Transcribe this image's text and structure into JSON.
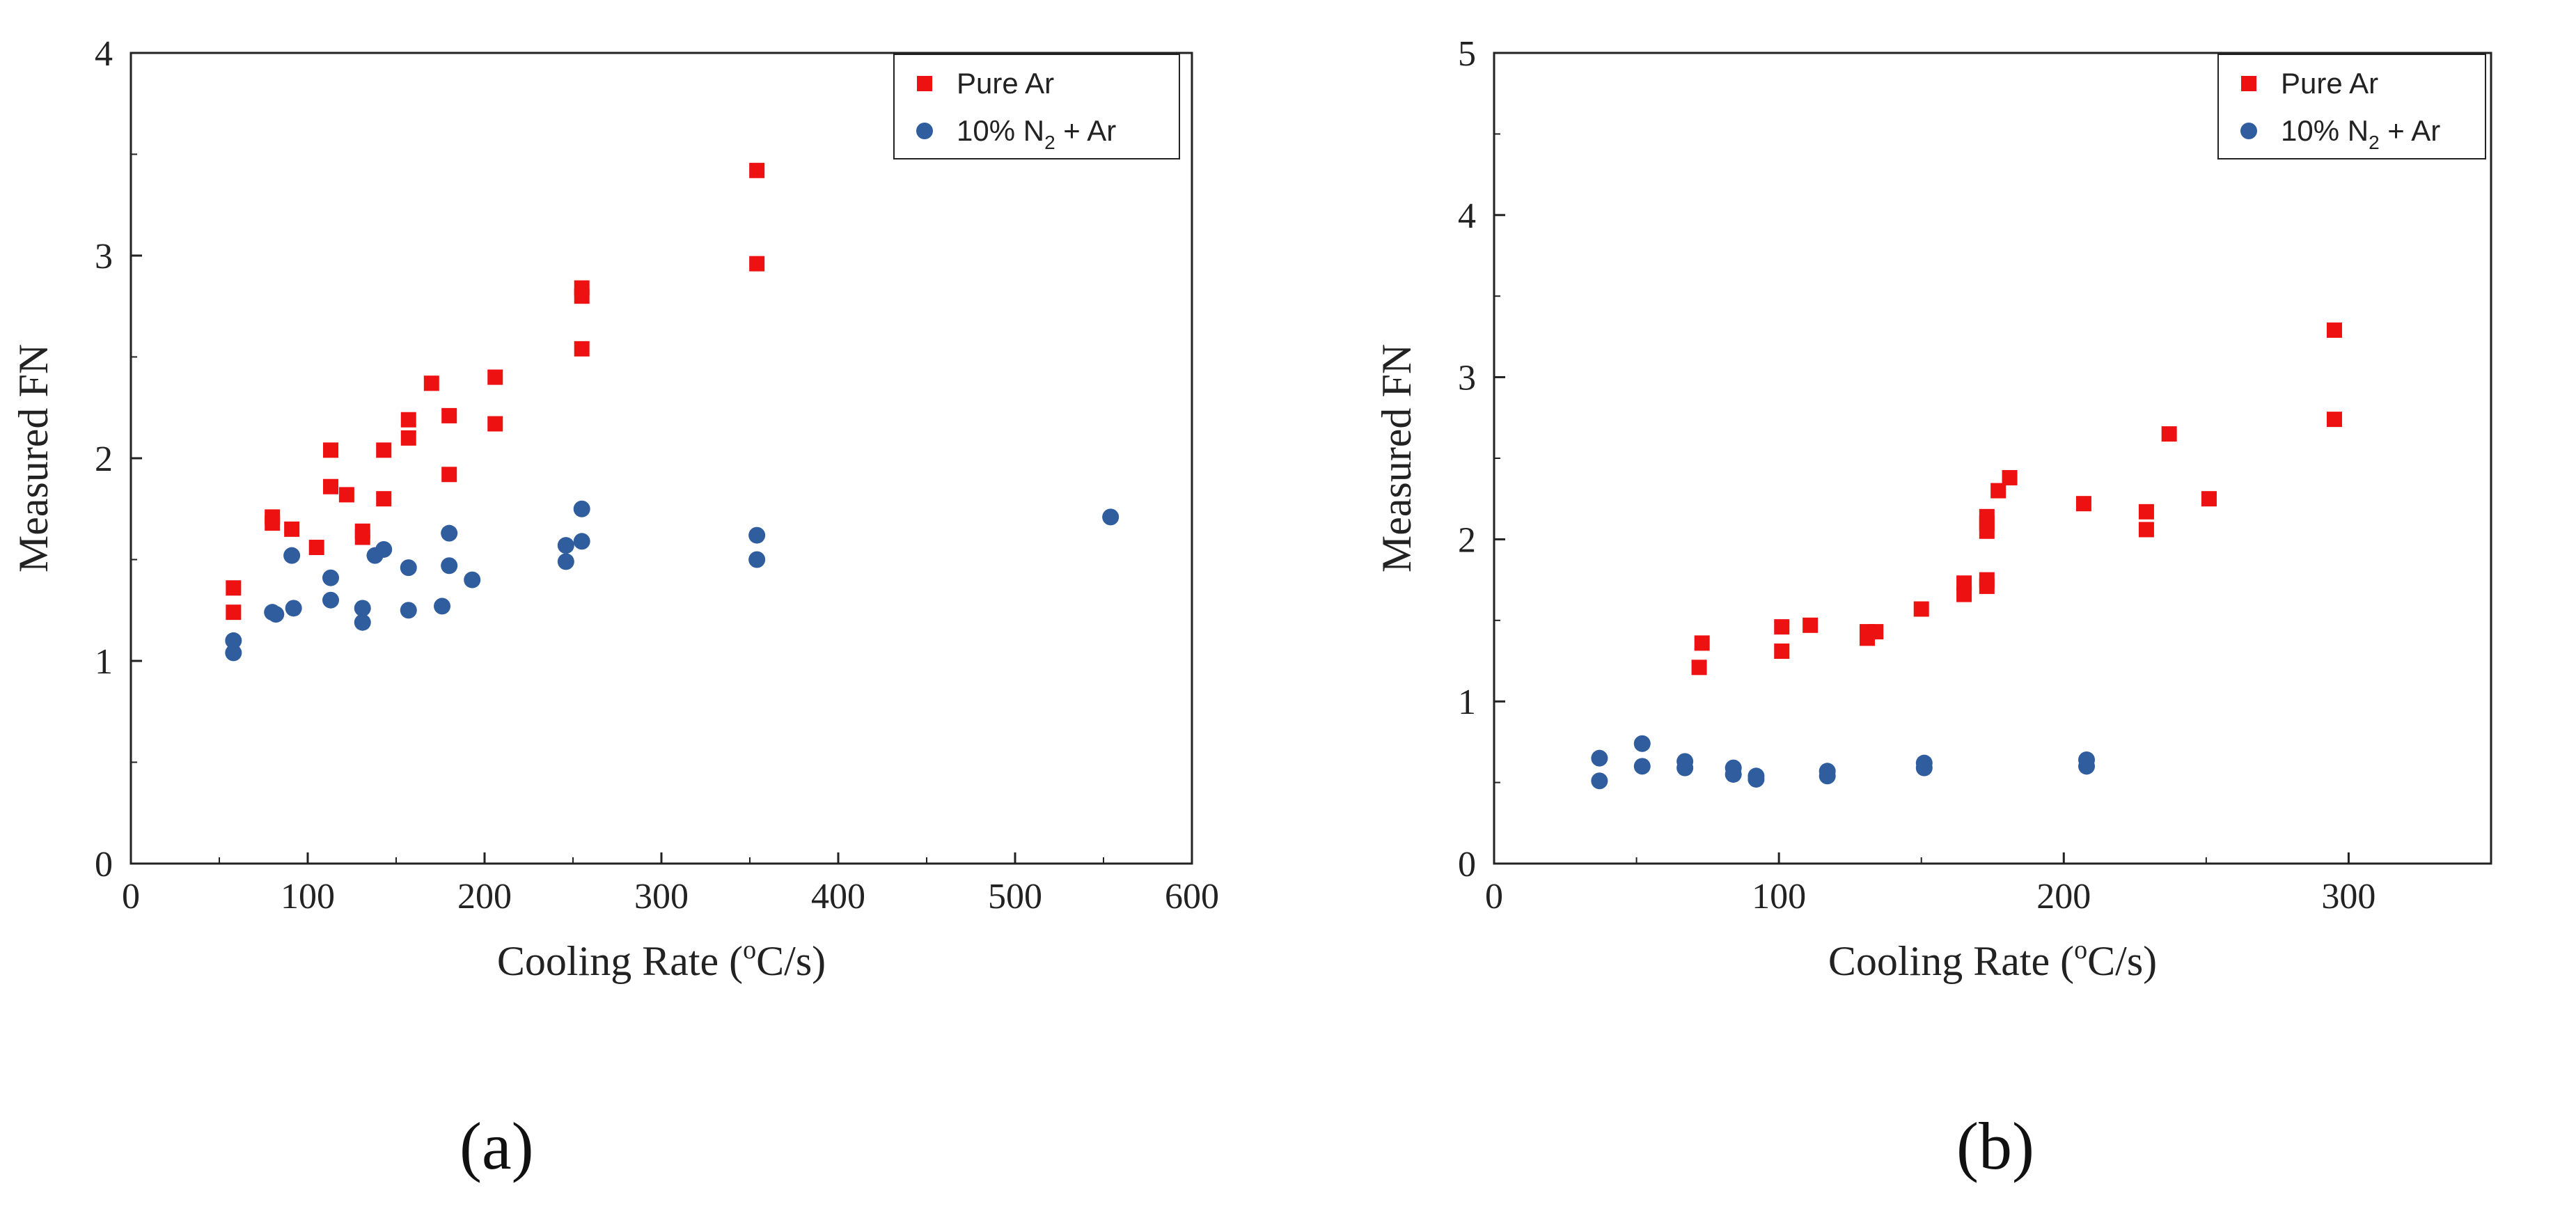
{
  "figure": {
    "panel_labels": [
      "(a)",
      "(b)"
    ]
  },
  "colors": {
    "pure_ar": "#ee1111",
    "n2_ar": "#2f5d9e",
    "axis": "#222222"
  },
  "chart_data": [
    {
      "type": "scatter",
      "panel": "(a)",
      "xlabel_main": "Cooling Rate (",
      "xlabel_sup": "o",
      "xlabel_tail": "C/s)",
      "ylabel": "Measured FN",
      "xlim": [
        0,
        600
      ],
      "ylim": [
        0,
        4
      ],
      "xticks": [
        0,
        100,
        200,
        300,
        400,
        500,
        600
      ],
      "yticks": [
        0,
        1,
        2,
        3,
        4
      ],
      "legend_position": "top-right",
      "series": [
        {
          "name": "Pure Ar",
          "legend_label": "Pure Ar",
          "marker": "square",
          "color": "#ee1111",
          "points": [
            [
              58,
              1.36
            ],
            [
              58,
              1.24
            ],
            [
              80,
              1.71
            ],
            [
              80,
              1.68
            ],
            [
              91,
              1.65
            ],
            [
              105,
              1.56
            ],
            [
              113,
              2.04
            ],
            [
              113,
              1.86
            ],
            [
              122,
              1.82
            ],
            [
              131,
              1.64
            ],
            [
              131,
              1.61
            ],
            [
              143,
              2.04
            ],
            [
              143,
              1.8
            ],
            [
              157,
              2.19
            ],
            [
              157,
              2.1
            ],
            [
              170,
              2.37
            ],
            [
              180,
              2.21
            ],
            [
              180,
              1.92
            ],
            [
              206,
              2.4
            ],
            [
              206,
              2.17
            ],
            [
              255,
              2.84
            ],
            [
              255,
              2.8
            ],
            [
              255,
              2.54
            ],
            [
              354,
              3.42
            ],
            [
              354,
              2.96
            ]
          ]
        },
        {
          "name": "10% N2 + Ar",
          "legend_main": "10% N",
          "legend_sub": "2",
          "legend_tail": " + Ar",
          "marker": "circle",
          "color": "#2f5d9e",
          "points": [
            [
              58,
              1.1
            ],
            [
              58,
              1.04
            ],
            [
              80,
              1.24
            ],
            [
              82,
              1.23
            ],
            [
              91,
              1.52
            ],
            [
              92,
              1.26
            ],
            [
              113,
              1.41
            ],
            [
              113,
              1.3
            ],
            [
              131,
              1.26
            ],
            [
              131,
              1.19
            ],
            [
              138,
              1.52
            ],
            [
              143,
              1.55
            ],
            [
              157,
              1.46
            ],
            [
              157,
              1.25
            ],
            [
              176,
              1.27
            ],
            [
              180,
              1.63
            ],
            [
              180,
              1.47
            ],
            [
              193,
              1.4
            ],
            [
              246,
              1.57
            ],
            [
              246,
              1.49
            ],
            [
              255,
              1.75
            ],
            [
              255,
              1.59
            ],
            [
              354,
              1.62
            ],
            [
              354,
              1.5
            ],
            [
              554,
              1.71
            ]
          ]
        }
      ]
    },
    {
      "type": "scatter",
      "panel": "(b)",
      "xlabel_main": "Cooling Rate (",
      "xlabel_sup": "o",
      "xlabel_tail": "C/s)",
      "ylabel": "Measured FN",
      "xlim": [
        0,
        350
      ],
      "ylim": [
        0,
        5
      ],
      "xticks": [
        0,
        100,
        200,
        300
      ],
      "yticks": [
        0,
        1,
        2,
        3,
        4,
        5
      ],
      "legend_position": "top-right",
      "series": [
        {
          "name": "Pure Ar",
          "legend_label": "Pure Ar",
          "marker": "square",
          "color": "#ee1111",
          "points": [
            [
              72,
              1.21
            ],
            [
              73,
              1.36
            ],
            [
              101,
              1.46
            ],
            [
              101,
              1.31
            ],
            [
              111,
              1.47
            ],
            [
              131,
              1.43
            ],
            [
              131,
              1.39
            ],
            [
              134,
              1.43
            ],
            [
              150,
              1.57
            ],
            [
              165,
              1.73
            ],
            [
              165,
              1.66
            ],
            [
              173,
              2.14
            ],
            [
              173,
              2.1
            ],
            [
              173,
              2.05
            ],
            [
              173,
              1.75
            ],
            [
              173,
              1.71
            ],
            [
              177,
              2.3
            ],
            [
              181,
              2.38
            ],
            [
              207,
              2.22
            ],
            [
              229,
              2.17
            ],
            [
              229,
              2.06
            ],
            [
              237,
              2.65
            ],
            [
              251,
              2.25
            ],
            [
              295,
              3.29
            ],
            [
              295,
              2.74
            ]
          ]
        },
        {
          "name": "10% N2 + Ar",
          "legend_main": "10% N",
          "legend_sub": "2",
          "legend_tail": " + Ar",
          "marker": "circle",
          "color": "#2f5d9e",
          "points": [
            [
              37,
              0.65
            ],
            [
              37,
              0.51
            ],
            [
              52,
              0.74
            ],
            [
              52,
              0.6
            ],
            [
              67,
              0.63
            ],
            [
              67,
              0.59
            ],
            [
              84,
              0.59
            ],
            [
              84,
              0.55
            ],
            [
              92,
              0.54
            ],
            [
              92,
              0.52
            ],
            [
              117,
              0.57
            ],
            [
              117,
              0.54
            ],
            [
              151,
              0.62
            ],
            [
              151,
              0.59
            ],
            [
              208,
              0.64
            ],
            [
              208,
              0.6
            ]
          ]
        }
      ]
    }
  ]
}
